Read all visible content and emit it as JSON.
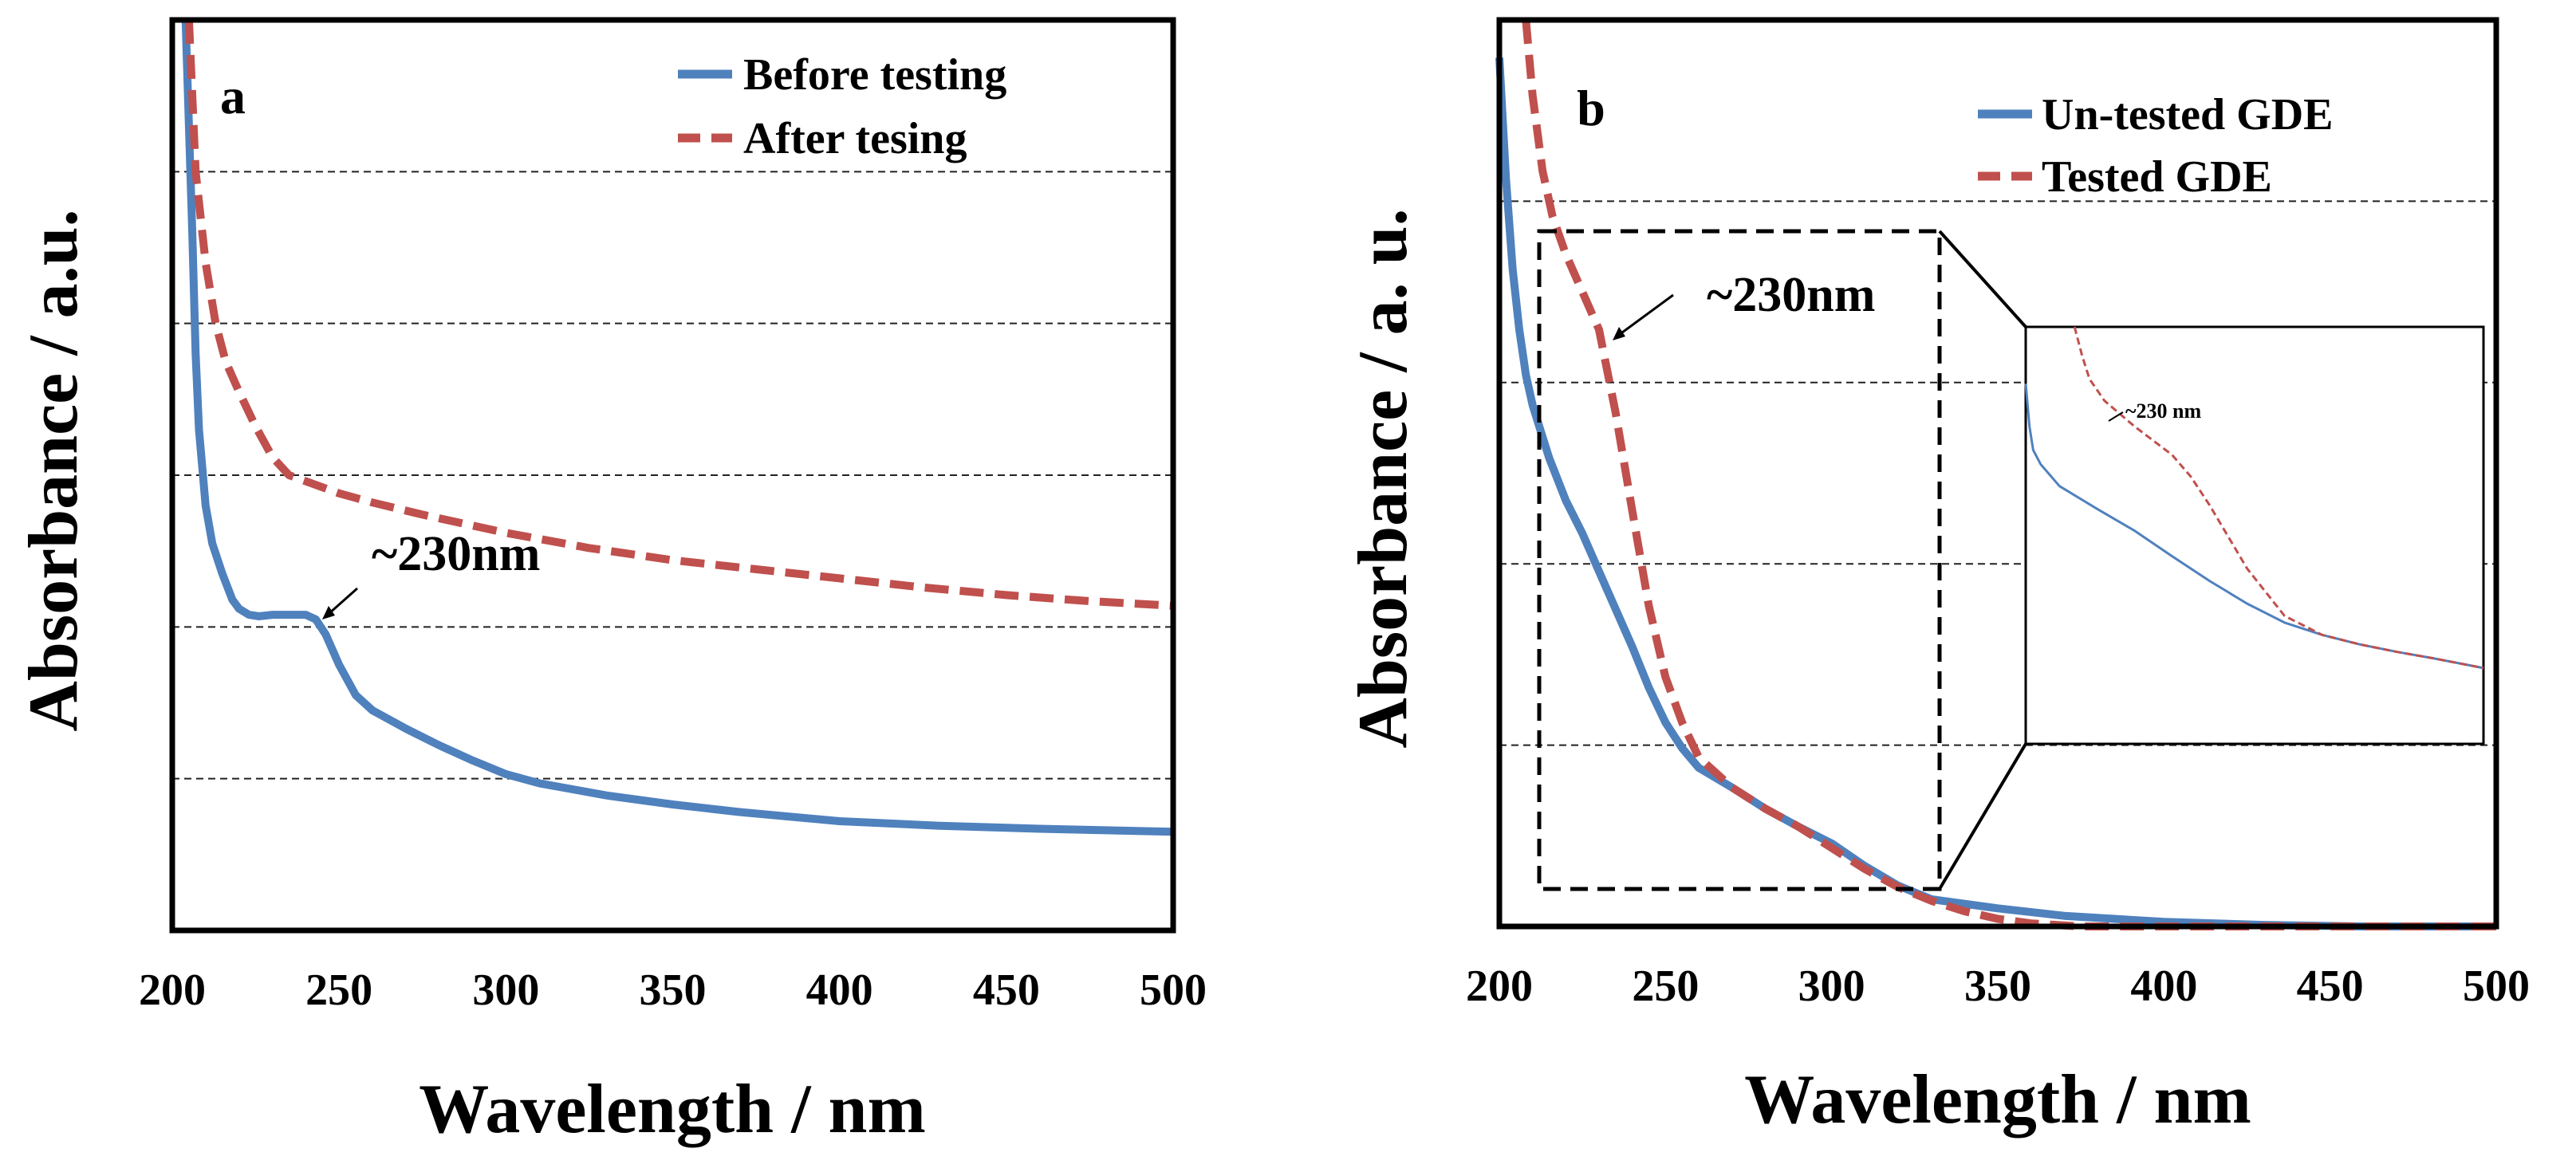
{
  "chart_data": [
    {
      "panel_label": "a",
      "type": "line",
      "xlabel": "Wavelength / nm",
      "ylabel": "Absorbance / a.u.",
      "xlim": [
        200,
        500
      ],
      "ylim": [
        0,
        6
      ],
      "x_ticks": [
        "200",
        "250",
        "300",
        "350",
        "400",
        "450",
        "500"
      ],
      "y_gridlines": [
        1,
        2,
        3,
        4,
        5
      ],
      "grid": "horizontal dashed",
      "legend_position": "top-right",
      "series": [
        {
          "name": "Before testing",
          "style": "solid",
          "color": "#4f81bd",
          "x": [
            204,
            205,
            206,
            207,
            208,
            210,
            212,
            215,
            218,
            220,
            223,
            226,
            230,
            235,
            240,
            243,
            246,
            250,
            255,
            260,
            270,
            280,
            290,
            300,
            310,
            320,
            330,
            350,
            370,
            400,
            430,
            460,
            480,
            500
          ],
          "y": [
            6.0,
            5.3,
            4.6,
            3.8,
            3.3,
            2.8,
            2.55,
            2.35,
            2.18,
            2.12,
            2.08,
            2.07,
            2.08,
            2.08,
            2.08,
            2.05,
            1.95,
            1.75,
            1.55,
            1.45,
            1.33,
            1.22,
            1.12,
            1.03,
            0.97,
            0.93,
            0.89,
            0.83,
            0.78,
            0.72,
            0.69,
            0.67,
            0.66,
            0.65
          ]
        },
        {
          "name": "After tesing",
          "style": "dashed",
          "color": "#c0504d",
          "x": [
            205,
            207,
            210,
            213,
            216,
            220,
            225,
            230,
            235,
            240,
            245,
            250,
            260,
            275,
            300,
            325,
            350,
            375,
            400,
            425,
            450,
            475,
            500
          ],
          "y": [
            6.0,
            5.0,
            4.4,
            4.0,
            3.75,
            3.55,
            3.32,
            3.12,
            3.0,
            2.96,
            2.92,
            2.88,
            2.82,
            2.74,
            2.62,
            2.52,
            2.44,
            2.38,
            2.32,
            2.26,
            2.21,
            2.17,
            2.14
          ]
        }
      ],
      "annotations": [
        {
          "text": "~230nm",
          "x": 243,
          "y": 2.08
        }
      ]
    },
    {
      "panel_label": "b",
      "type": "line",
      "xlabel": "Wavelength / nm",
      "ylabel": "Absorbance / a. u.",
      "xlim": [
        200,
        500
      ],
      "ylim": [
        0,
        6
      ],
      "x_ticks": [
        "200",
        "250",
        "300",
        "350",
        "400",
        "450",
        "500"
      ],
      "y_gridlines": [
        1.2,
        2.4,
        3.6,
        4.8
      ],
      "grid": "horizontal dashed",
      "legend_position": "top-right",
      "series": [
        {
          "name": "Un-tested GDE",
          "style": "solid",
          "color": "#4f81bd",
          "x": [
            200,
            202,
            204,
            206,
            208,
            210,
            215,
            220,
            225,
            230,
            235,
            240,
            245,
            250,
            255,
            260,
            270,
            280,
            290,
            300,
            310,
            320,
            330,
            350,
            370,
            400,
            430,
            460,
            500
          ],
          "y": [
            5.75,
            4.95,
            4.35,
            3.95,
            3.65,
            3.45,
            3.1,
            2.82,
            2.6,
            2.35,
            2.1,
            1.85,
            1.58,
            1.35,
            1.18,
            1.05,
            0.92,
            0.78,
            0.66,
            0.55,
            0.4,
            0.27,
            0.18,
            0.12,
            0.07,
            0.03,
            0.01,
            0.0,
            0.0
          ]
        },
        {
          "name": "Tested GDE",
          "style": "dashed",
          "color": "#c0504d",
          "x": [
            208,
            210,
            213,
            216,
            220,
            223,
            226,
            230,
            235,
            240,
            245,
            250,
            255,
            260,
            270,
            280,
            290,
            300,
            310,
            320,
            330,
            340,
            350,
            360,
            375,
            400,
            430,
            460,
            500
          ],
          "y": [
            6.0,
            5.5,
            5.0,
            4.7,
            4.45,
            4.3,
            4.15,
            3.95,
            3.4,
            2.75,
            2.12,
            1.65,
            1.35,
            1.12,
            0.92,
            0.78,
            0.66,
            0.52,
            0.38,
            0.26,
            0.17,
            0.1,
            0.05,
            0.02,
            0.0,
            0.0,
            0.0,
            0.0,
            0.0
          ]
        }
      ],
      "annotations": [
        {
          "text": "~230nm",
          "x": 235,
          "y": 3.95
        }
      ],
      "zoom_box": {
        "xlim": [
          211,
          333
        ],
        "ylim": [
          0.2,
          4.6
        ]
      },
      "inset": {
        "annotation": "~230 nm",
        "xlim": [
          211,
          333
        ],
        "ylim": [
          0.2,
          4.6
        ],
        "series": [
          {
            "name": "Un-tested GDE",
            "x": [
              211,
              212,
              213,
              215,
              220,
              230,
              240,
              250,
              260,
              270,
              280,
              290,
              300,
              310,
              320,
              333
            ],
            "y": [
              4.0,
              3.55,
              3.3,
              3.15,
              2.92,
              2.68,
              2.45,
              2.18,
              1.92,
              1.68,
              1.48,
              1.35,
              1.25,
              1.17,
              1.1,
              1.0
            ]
          },
          {
            "name": "Tested GDE",
            "x": [
              224,
              226,
              228,
              232,
              240,
              250,
              255,
              260,
              270,
              280,
              290,
              300,
              310,
              320,
              333
            ],
            "y": [
              4.6,
              4.3,
              4.05,
              3.82,
              3.55,
              3.25,
              3.02,
              2.72,
              2.05,
              1.55,
              1.35,
              1.25,
              1.17,
              1.1,
              1.0
            ]
          }
        ]
      }
    }
  ]
}
